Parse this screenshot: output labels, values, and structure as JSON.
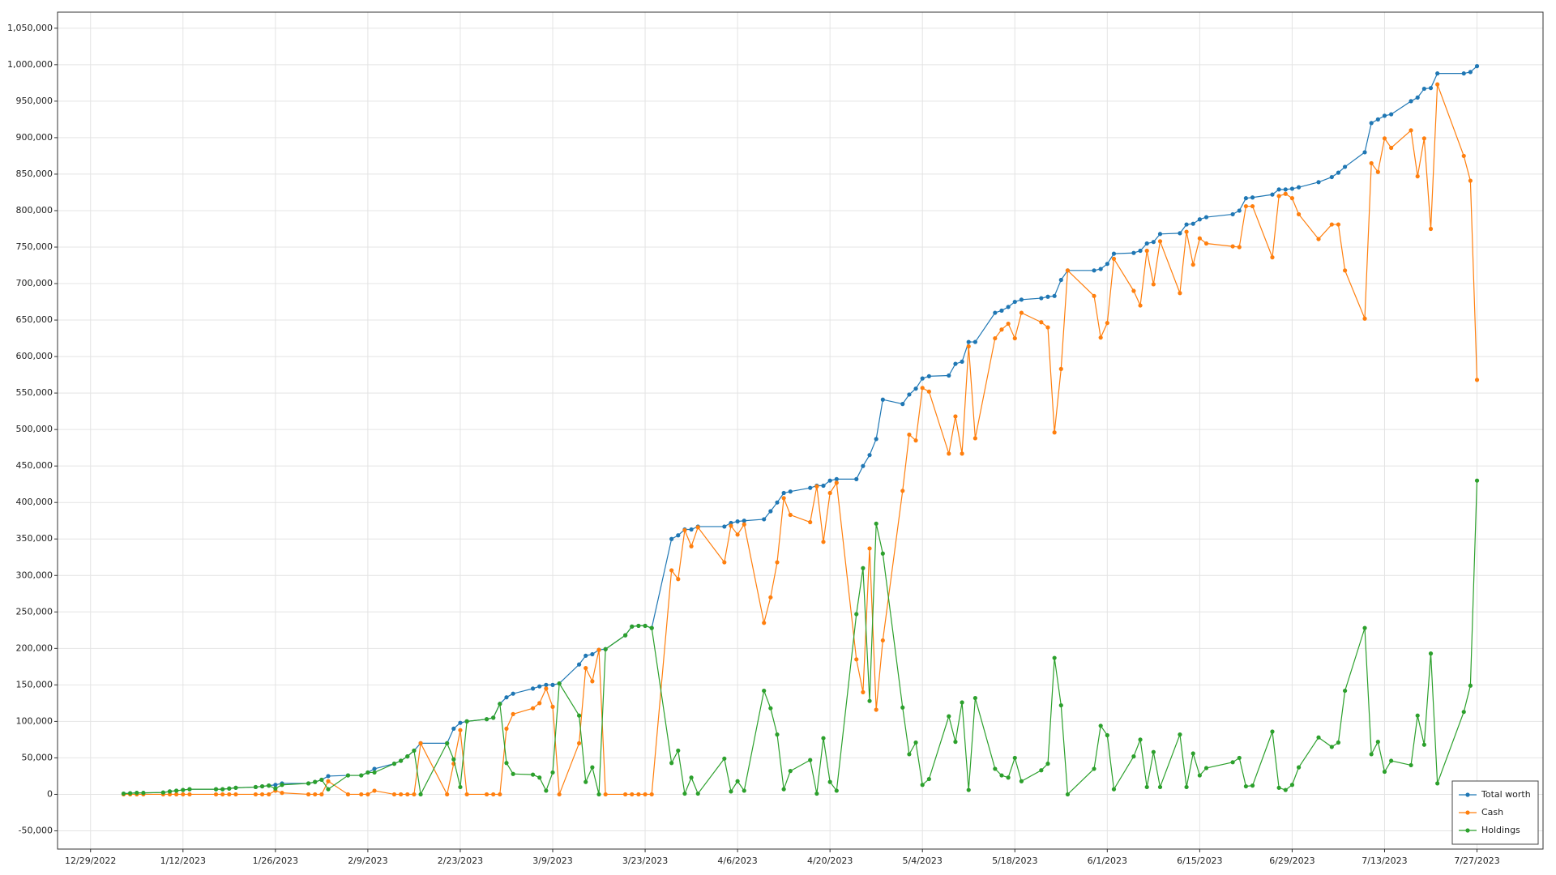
{
  "chart_data": {
    "type": "line",
    "x": [
      "1/3/2023",
      "1/4/2023",
      "1/5/2023",
      "1/6/2023",
      "1/9/2023",
      "1/10/2023",
      "1/11/2023",
      "1/12/2023",
      "1/13/2023",
      "1/17/2023",
      "1/18/2023",
      "1/19/2023",
      "1/20/2023",
      "1/23/2023",
      "1/24/2023",
      "1/25/2023",
      "1/26/2023",
      "1/27/2023",
      "1/31/2023",
      "2/1/2023",
      "2/2/2023",
      "2/3/2023",
      "2/6/2023",
      "2/8/2023",
      "2/9/2023",
      "2/10/2023",
      "2/13/2023",
      "2/14/2023",
      "2/15/2023",
      "2/16/2023",
      "2/17/2023",
      "2/21/2023",
      "2/22/2023",
      "2/23/2023",
      "2/24/2023",
      "2/27/2023",
      "2/28/2023",
      "3/1/2023",
      "3/2/2023",
      "3/3/2023",
      "3/6/2023",
      "3/7/2023",
      "3/8/2023",
      "3/9/2023",
      "3/10/2023",
      "3/13/2023",
      "3/14/2023",
      "3/15/2023",
      "3/16/2023",
      "3/17/2023",
      "3/20/2023",
      "3/21/2023",
      "3/22/2023",
      "3/23/2023",
      "3/24/2023",
      "3/27/2023",
      "3/28/2023",
      "3/29/2023",
      "3/30/2023",
      "3/31/2023",
      "4/4/2023",
      "4/5/2023",
      "4/6/2023",
      "4/7/2023",
      "4/10/2023",
      "4/11/2023",
      "4/12/2023",
      "4/13/2023",
      "4/14/2023",
      "4/17/2023",
      "4/18/2023",
      "4/19/2023",
      "4/20/2023",
      "4/21/2023",
      "4/24/2023",
      "4/25/2023",
      "4/26/2023",
      "4/27/2023",
      "4/28/2023",
      "5/1/2023",
      "5/2/2023",
      "5/3/2023",
      "5/4/2023",
      "5/5/2023",
      "5/8/2023",
      "5/9/2023",
      "5/10/2023",
      "5/11/2023",
      "5/12/2023",
      "5/15/2023",
      "5/16/2023",
      "5/17/2023",
      "5/18/2023",
      "5/19/2023",
      "5/22/2023",
      "5/23/2023",
      "5/24/2023",
      "5/25/2023",
      "5/26/2023",
      "5/30/2023",
      "5/31/2023",
      "6/1/2023",
      "6/2/2023",
      "6/5/2023",
      "6/6/2023",
      "6/7/2023",
      "6/8/2023",
      "6/9/2023",
      "6/12/2023",
      "6/13/2023",
      "6/14/2023",
      "6/15/2023",
      "6/16/2023",
      "6/20/2023",
      "6/21/2023",
      "6/22/2023",
      "6/23/2023",
      "6/26/2023",
      "6/27/2023",
      "6/28/2023",
      "6/29/2023",
      "6/30/2023",
      "7/3/2023",
      "7/5/2023",
      "7/6/2023",
      "7/7/2023",
      "7/10/2023",
      "7/11/2023",
      "7/12/2023",
      "7/13/2023",
      "7/14/2023",
      "7/17/2023",
      "7/18/2023",
      "7/19/2023",
      "7/20/2023",
      "7/21/2023",
      "7/25/2023",
      "7/26/2023",
      "7/27/2023"
    ],
    "series": [
      {
        "name": "Total worth",
        "color": "#1f77b4",
        "values": [
          1000,
          1500,
          2000,
          2000,
          2500,
          4000,
          5000,
          6000,
          7000,
          7000,
          7000,
          8000,
          9000,
          10000,
          11000,
          12000,
          13000,
          15000,
          15000,
          17000,
          20000,
          25000,
          26000,
          26000,
          30000,
          35000,
          42000,
          46000,
          52000,
          60000,
          70000,
          70000,
          90000,
          98000,
          100000,
          103000,
          105000,
          124000,
          133000,
          138000,
          145000,
          148000,
          150000,
          150000,
          152000,
          178000,
          190000,
          192000,
          198000,
          199000,
          218000,
          230000,
          231000,
          231000,
          228000,
          350000,
          355000,
          363000,
          363000,
          367000,
          367000,
          372000,
          374000,
          375000,
          377000,
          388000,
          400000,
          413000,
          415000,
          420000,
          423000,
          423000,
          430000,
          432000,
          432000,
          450000,
          465000,
          487000,
          541000,
          535000,
          548000,
          556000,
          570000,
          573000,
          574000,
          590000,
          593000,
          620000,
          620000,
          660000,
          663000,
          668000,
          675000,
          678000,
          680000,
          682000,
          683000,
          705000,
          718000,
          718000,
          720000,
          727000,
          741000,
          742000,
          745000,
          755000,
          757000,
          768000,
          769000,
          781000,
          782000,
          788000,
          791000,
          795000,
          800000,
          817000,
          818000,
          822000,
          829000,
          829000,
          830000,
          832000,
          839000,
          846000,
          852000,
          860000,
          880000,
          920000,
          925000,
          930000,
          932000,
          950000,
          955000,
          967000,
          968000,
          988000,
          988000,
          990000,
          998000
        ]
      },
      {
        "name": "Cash",
        "color": "#ff7f0e",
        "values": [
          0,
          0,
          0,
          0,
          0,
          0,
          0,
          0,
          0,
          0,
          0,
          0,
          0,
          0,
          0,
          0,
          5000,
          2000,
          0,
          0,
          0,
          18000,
          0,
          0,
          0,
          5000,
          0,
          0,
          0,
          0,
          70000,
          0,
          42000,
          88000,
          0,
          0,
          0,
          0,
          90000,
          110000,
          118000,
          125000,
          145000,
          120000,
          0,
          70000,
          173000,
          155000,
          198000,
          0,
          0,
          0,
          0,
          0,
          0,
          307000,
          295000,
          362000,
          340000,
          366000,
          318000,
          368000,
          356000,
          370000,
          235000,
          270000,
          318000,
          406000,
          383000,
          373000,
          422000,
          346000,
          413000,
          427000,
          185000,
          140000,
          337000,
          116000,
          211000,
          416000,
          493000,
          485000,
          557000,
          552000,
          467000,
          518000,
          467000,
          614000,
          488000,
          625000,
          637000,
          645000,
          625000,
          660000,
          647000,
          640000,
          496000,
          583000,
          718000,
          683000,
          626000,
          646000,
          734000,
          690000,
          670000,
          745000,
          699000,
          758000,
          687000,
          771000,
          726000,
          762000,
          755000,
          751000,
          750000,
          806000,
          806000,
          736000,
          820000,
          823000,
          817000,
          795000,
          761000,
          781000,
          781000,
          718000,
          652000,
          865000,
          853000,
          899000,
          886000,
          910000,
          847000,
          899000,
          775000,
          973000,
          875000,
          841000,
          568000
        ]
      },
      {
        "name": "Holdings",
        "color": "#2ca02c",
        "values": [
          1000,
          1500,
          2000,
          2000,
          2500,
          4000,
          5000,
          6000,
          7000,
          7000,
          7000,
          8000,
          9000,
          10000,
          11000,
          12000,
          8000,
          13000,
          15000,
          17000,
          20000,
          7000,
          26000,
          26000,
          30000,
          30000,
          42000,
          46000,
          52000,
          60000,
          0,
          70000,
          48000,
          10000,
          100000,
          103000,
          105000,
          124000,
          43000,
          28000,
          27000,
          23000,
          5000,
          30000,
          152000,
          108000,
          17000,
          37000,
          0,
          199000,
          218000,
          230000,
          231000,
          231000,
          228000,
          43000,
          60000,
          1000,
          23000,
          1000,
          49000,
          4000,
          18000,
          5000,
          142000,
          118000,
          82000,
          7000,
          32000,
          47000,
          1000,
          77000,
          17000,
          5000,
          247000,
          310000,
          128000,
          371000,
          330000,
          119000,
          55000,
          71000,
          13000,
          21000,
          107000,
          72000,
          126000,
          6000,
          132000,
          35000,
          26000,
          23000,
          50000,
          18000,
          33000,
          42000,
          187000,
          122000,
          0,
          35000,
          94000,
          81000,
          7000,
          52000,
          75000,
          10000,
          58000,
          10000,
          82000,
          10000,
          56000,
          26000,
          36000,
          44000,
          50000,
          11000,
          12000,
          86000,
          9000,
          6000,
          13000,
          37000,
          78000,
          65000,
          71000,
          142000,
          228000,
          55000,
          72000,
          31000,
          46000,
          40000,
          108000,
          68000,
          193000,
          15000,
          113000,
          149000,
          430000
        ]
      }
    ],
    "xlim": [
      "12/24/2022",
      "8/6/2023"
    ],
    "xticks": [
      "12/29/2022",
      "1/12/2023",
      "1/26/2023",
      "2/9/2023",
      "2/23/2023",
      "3/9/2023",
      "3/23/2023",
      "4/6/2023",
      "4/20/2023",
      "5/4/2023",
      "5/18/2023",
      "6/1/2023",
      "6/15/2023",
      "6/29/2023",
      "7/13/2023",
      "7/27/2023"
    ],
    "ylim": [
      -75000,
      1072000
    ],
    "yticks": [
      {
        "value": -50000,
        "label": "-50,000"
      },
      0,
      {
        "value": 50000,
        "label": "50,000"
      },
      {
        "value": 100000,
        "label": "100,000"
      },
      {
        "value": 150000,
        "label": "150,000"
      },
      {
        "value": 200000,
        "label": "200,000"
      },
      {
        "value": 250000,
        "label": "250,000"
      },
      {
        "value": 300000,
        "label": "300,000"
      },
      {
        "value": 350000,
        "label": "350,000"
      },
      {
        "value": 400000,
        "label": "400,000"
      },
      {
        "value": 450000,
        "label": "450,000"
      },
      {
        "value": 500000,
        "label": "500,000"
      },
      {
        "value": 550000,
        "label": "550,000"
      },
      {
        "value": 600000,
        "label": "600,000"
      },
      {
        "value": 650000,
        "label": "650,000"
      },
      {
        "value": 700000,
        "label": "700,000"
      },
      {
        "value": 750000,
        "label": "750,000"
      },
      {
        "value": 800000,
        "label": "800,000"
      },
      {
        "value": 850000,
        "label": "850,000"
      },
      {
        "value": 900000,
        "label": "900,000"
      },
      {
        "value": 950000,
        "label": "950,000"
      },
      {
        "value": 1000000,
        "label": "1,000,000"
      },
      {
        "value": 1050000,
        "label": "1,050,000"
      }
    ],
    "grid": true,
    "legend": "lower right"
  }
}
